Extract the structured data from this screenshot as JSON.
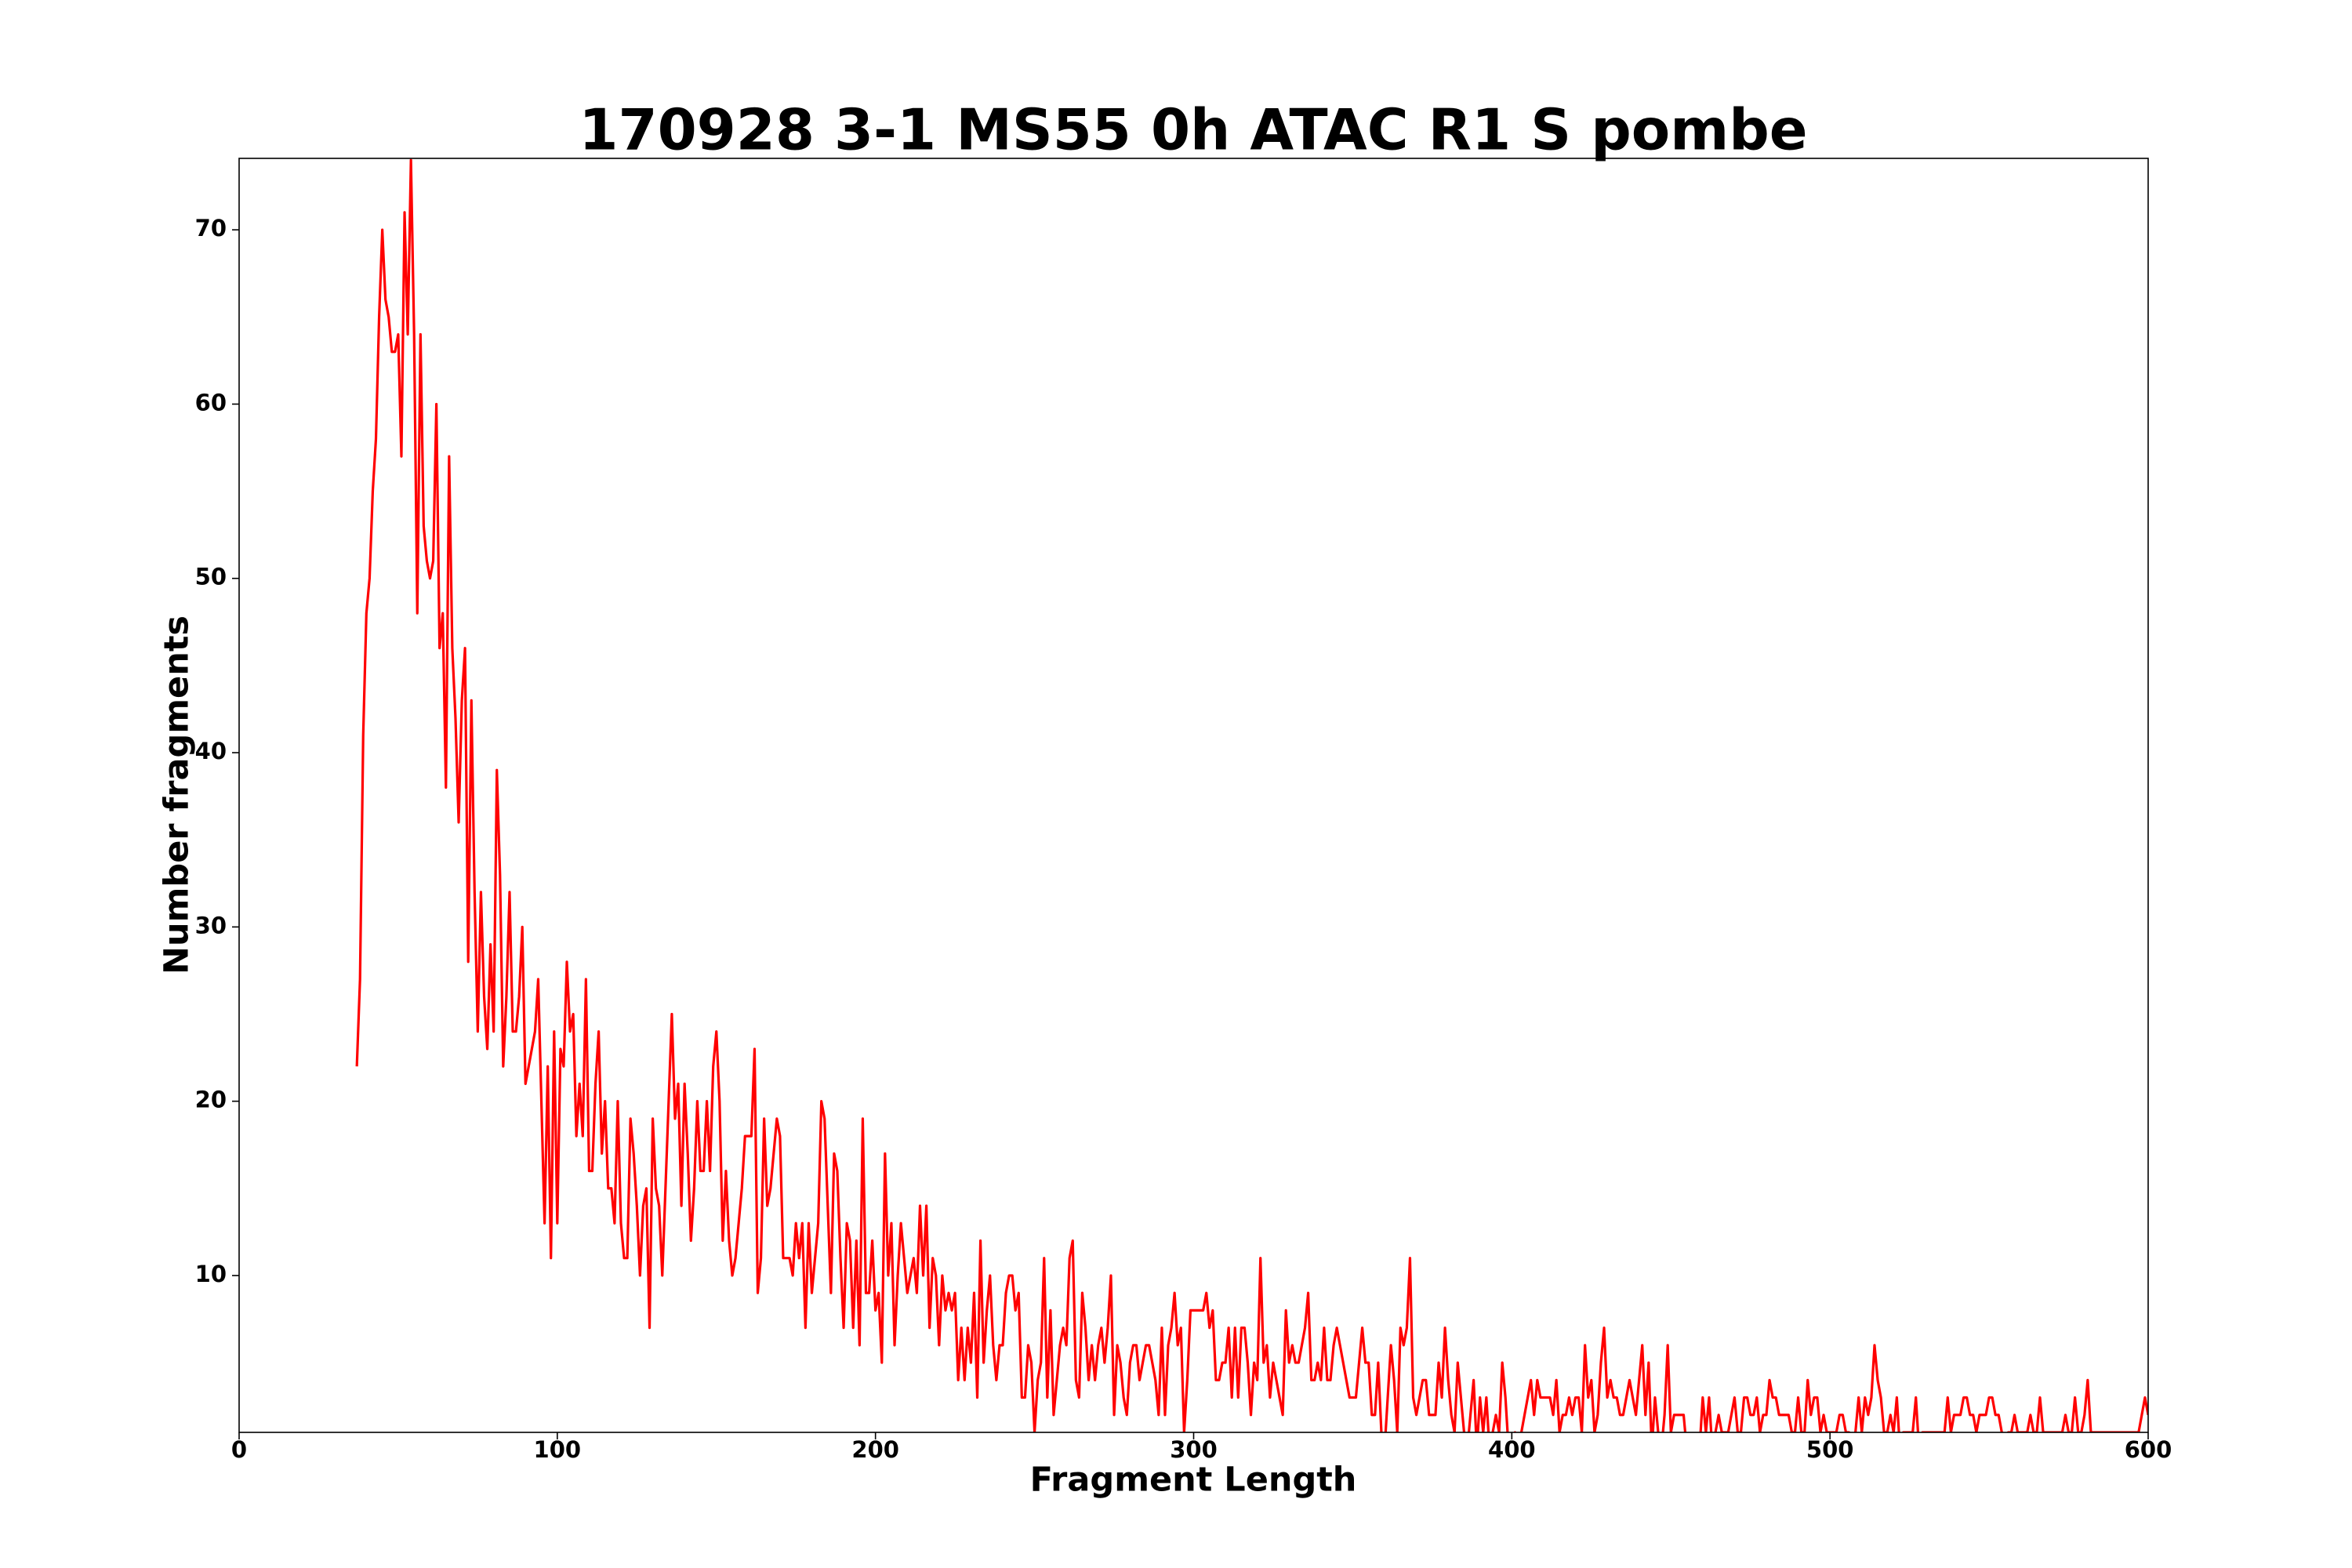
{
  "chart_data": {
    "type": "line",
    "title": "170928 3-1 MS55 0h ATAC R1 S pombe",
    "x_label": "Fragment Length",
    "y_label": "Number fragments",
    "xlim": [
      0,
      600
    ],
    "ylim": [
      1,
      74.1
    ],
    "xticks": [
      0,
      100,
      200,
      300,
      400,
      500,
      600
    ],
    "yticks": [
      10,
      20,
      30,
      40,
      50,
      60,
      70
    ],
    "grid": false,
    "series": [
      {
        "name": "fragments",
        "color": "#ff0000",
        "x": [
          37,
          38,
          39,
          40,
          41,
          42,
          43,
          44,
          45,
          46,
          47,
          48,
          49,
          50,
          51,
          52,
          53,
          54,
          55,
          56,
          57,
          58,
          59,
          60,
          61,
          62,
          63,
          64,
          65,
          66,
          67,
          68,
          69,
          70,
          71,
          72,
          73,
          74,
          75,
          76,
          77,
          78,
          79,
          80,
          81,
          82,
          83,
          84,
          85,
          86,
          87,
          88,
          89,
          90,
          91,
          92,
          93,
          94,
          95,
          96,
          97,
          98,
          99,
          100,
          101,
          102,
          103,
          104,
          105,
          106,
          107,
          108,
          109,
          110,
          111,
          112,
          113,
          114,
          115,
          116,
          117,
          118,
          119,
          120,
          121,
          122,
          123,
          124,
          125,
          126,
          127,
          128,
          129,
          130,
          131,
          132,
          133,
          134,
          135,
          136,
          137,
          138,
          139,
          140,
          141,
          142,
          143,
          144,
          145,
          146,
          147,
          148,
          149,
          150,
          151,
          152,
          153,
          154,
          155,
          156,
          157,
          158,
          159,
          160,
          161,
          162,
          163,
          164,
          165,
          166,
          167,
          168,
          169,
          170,
          171,
          172,
          173,
          174,
          175,
          176,
          177,
          178,
          179,
          180,
          181,
          182,
          183,
          184,
          185,
          186,
          187,
          188,
          189,
          190,
          191,
          192,
          193,
          194,
          195,
          196,
          197,
          198,
          199,
          200,
          201,
          202,
          203,
          204,
          205,
          206,
          207,
          208,
          209,
          210,
          211,
          212,
          213,
          214,
          215,
          216,
          217,
          218,
          219,
          220,
          221,
          222,
          223,
          224,
          225,
          226,
          227,
          228,
          229,
          230,
          231,
          232,
          233,
          234,
          235,
          236,
          237,
          238,
          239,
          240,
          241,
          242,
          243,
          244,
          245,
          246,
          247,
          248,
          249,
          250,
          251,
          252,
          253,
          254,
          255,
          256,
          257,
          258,
          259,
          260,
          261,
          262,
          263,
          264,
          265,
          266,
          267,
          268,
          269,
          270,
          271,
          272,
          273,
          274,
          275,
          276,
          277,
          278,
          279,
          280,
          281,
          282,
          283,
          284,
          285,
          286,
          287,
          288,
          289,
          290,
          291,
          292,
          293,
          294,
          295,
          296,
          297,
          298,
          299,
          300,
          301,
          302,
          303,
          304,
          305,
          306,
          307,
          308,
          309,
          310,
          311,
          312,
          313,
          314,
          315,
          316,
          317,
          318,
          319,
          320,
          321,
          322,
          323,
          324,
          325,
          326,
          327,
          328,
          329,
          330,
          331,
          332,
          333,
          334,
          335,
          336,
          337,
          338,
          339,
          340,
          341,
          342,
          343,
          344,
          345,
          346,
          347,
          348,
          349,
          350,
          351,
          352,
          353,
          354,
          355,
          356,
          357,
          358,
          359,
          360,
          361,
          362,
          363,
          364,
          365,
          366,
          367,
          368,
          369,
          370,
          371,
          372,
          373,
          374,
          375,
          376,
          377,
          378,
          379,
          380,
          381,
          382,
          383,
          384,
          385,
          386,
          387,
          388,
          389,
          390,
          391,
          392,
          393,
          394,
          395,
          396,
          397,
          398,
          399,
          400,
          401,
          402,
          403,
          404,
          405,
          406,
          407,
          408,
          409,
          410,
          411,
          412,
          413,
          414,
          415,
          416,
          417,
          418,
          419,
          420,
          421,
          422,
          423,
          424,
          425,
          426,
          427,
          428,
          429,
          430,
          431,
          432,
          433,
          434,
          435,
          436,
          437,
          438,
          439,
          440,
          441,
          442,
          443,
          444,
          445,
          446,
          447,
          448,
          449,
          450,
          451,
          452,
          453,
          454,
          455,
          456,
          457,
          458,
          459,
          460,
          461,
          462,
          463,
          464,
          465,
          466,
          467,
          468,
          469,
          470,
          471,
          472,
          473,
          474,
          475,
          476,
          477,
          478,
          479,
          480,
          481,
          482,
          483,
          484,
          485,
          486,
          487,
          488,
          489,
          490,
          491,
          492,
          493,
          494,
          495,
          496,
          497,
          498,
          499,
          500,
          501,
          502,
          503,
          504,
          505,
          506,
          507,
          508,
          509,
          510,
          511,
          512,
          513,
          514,
          515,
          516,
          517,
          518,
          519,
          520,
          521,
          522,
          523,
          524,
          525,
          526,
          527,
          528,
          529,
          530,
          531,
          532,
          533,
          534,
          535,
          536,
          537,
          538,
          539,
          540,
          541,
          542,
          543,
          544,
          545,
          546,
          547,
          548,
          549,
          550,
          551,
          552,
          553,
          554,
          555,
          556,
          557,
          558,
          559,
          560,
          561,
          562,
          563,
          564,
          565,
          566,
          567,
          568,
          569,
          570,
          571,
          572,
          573,
          574,
          575,
          576,
          577,
          578,
          579,
          580,
          581,
          582,
          583,
          584,
          585,
          586,
          587,
          588,
          589,
          590,
          591,
          592,
          593,
          594,
          595,
          596,
          597,
          598,
          599,
          600
        ],
        "values": [
          22,
          27,
          41,
          48,
          50,
          55,
          58,
          65,
          70,
          66,
          65,
          63,
          63,
          64,
          57,
          71,
          64,
          74,
          64,
          48,
          64,
          53,
          51,
          50,
          51,
          60,
          46,
          48,
          38,
          57,
          46,
          42,
          36,
          43,
          46,
          28,
          43,
          32,
          24,
          32,
          26,
          23,
          29,
          24,
          39,
          33,
          22,
          26,
          32,
          24,
          24,
          26,
          30,
          21,
          22,
          23,
          24,
          27,
          20,
          13,
          22,
          11,
          24,
          13,
          23,
          22,
          28,
          24,
          25,
          18,
          21,
          18,
          27,
          16,
          16,
          21,
          24,
          17,
          20,
          15,
          15,
          13,
          20,
          13,
          11,
          11,
          19,
          17,
          14,
          10,
          14,
          15,
          7,
          19,
          15,
          14,
          10,
          15,
          20,
          25,
          19,
          21,
          14,
          21,
          17,
          12,
          15,
          20,
          16,
          16,
          20,
          16,
          22,
          24,
          20,
          12,
          16,
          12,
          10,
          11,
          13,
          15,
          18,
          18,
          18,
          23,
          9,
          11,
          19,
          14,
          15,
          17,
          19,
          18,
          11,
          11,
          11,
          10,
          13,
          11,
          13,
          7,
          13,
          9,
          11,
          13,
          20,
          19,
          14,
          9,
          17,
          16,
          11,
          7,
          13,
          12,
          7,
          12,
          6,
          19,
          9,
          9,
          12,
          8,
          9,
          5,
          17,
          10,
          13,
          6,
          10,
          13,
          11,
          9,
          10,
          11,
          9,
          14,
          10,
          14,
          7,
          11,
          10,
          6,
          10,
          8,
          9,
          8,
          9,
          4,
          7,
          4,
          7,
          5,
          9,
          3,
          12,
          5,
          8,
          10,
          6,
          4,
          6,
          6,
          9,
          10,
          10,
          8,
          9,
          3,
          3,
          6,
          5,
          1,
          4,
          5,
          11,
          3,
          8,
          2,
          4,
          6,
          7,
          6,
          11,
          12,
          4,
          3,
          9,
          7,
          4,
          6,
          4,
          6,
          7,
          5,
          7,
          10,
          2,
          6,
          5,
          3,
          2,
          5,
          6,
          6,
          4,
          5,
          6,
          6,
          5,
          4,
          2,
          7,
          2,
          6,
          7,
          9,
          6,
          7,
          1,
          4,
          8,
          8,
          8,
          8,
          8,
          9,
          7,
          8,
          4,
          4,
          5,
          5,
          7,
          3,
          7,
          3,
          7,
          7,
          5,
          2,
          5,
          4,
          11,
          5,
          6,
          3,
          5,
          4,
          3,
          2,
          8,
          5,
          6,
          5,
          5,
          6,
          7,
          9,
          4,
          4,
          5,
          4,
          7,
          4,
          4,
          6,
          7,
          6,
          5,
          4,
          3,
          3,
          3,
          5,
          7,
          5,
          5,
          2,
          2,
          5,
          1,
          0,
          3,
          6,
          4,
          1,
          7,
          6,
          7,
          11,
          3,
          2,
          3,
          4,
          4,
          2,
          2,
          2,
          5,
          3,
          7,
          4,
          2,
          1,
          5,
          3,
          1,
          0,
          2,
          4,
          0,
          3,
          1,
          3,
          0,
          1,
          2,
          1,
          5,
          3,
          0,
          0,
          1,
          0,
          1,
          2,
          3,
          4,
          2,
          4,
          3,
          3,
          3,
          3,
          2,
          4,
          1,
          2,
          2,
          3,
          2,
          3,
          3,
          1,
          6,
          3,
          4,
          1,
          2,
          5,
          7,
          3,
          4,
          3,
          3,
          2,
          2,
          3,
          4,
          3,
          2,
          4,
          6,
          2,
          5,
          0,
          3,
          1,
          0,
          2,
          6,
          1,
          2,
          2,
          2,
          2,
          0,
          0,
          0,
          0,
          0,
          3,
          1,
          3,
          0,
          1,
          2,
          1,
          1,
          1,
          2,
          3,
          1,
          1,
          3,
          3,
          2,
          2,
          3,
          1,
          2,
          2,
          4,
          3,
          3,
          2,
          2,
          2,
          2,
          1,
          1,
          3,
          1,
          1,
          4,
          2,
          3,
          3,
          1,
          2,
          1,
          1,
          1,
          1,
          2,
          2,
          1,
          1,
          0,
          1,
          3,
          1,
          3,
          2,
          3,
          6,
          4,
          3,
          1,
          1,
          2,
          1,
          3,
          0,
          1,
          1,
          1,
          1,
          3,
          0,
          1,
          1,
          1,
          1,
          1,
          1,
          1,
          1,
          3,
          1,
          2,
          2,
          2,
          3,
          3,
          2,
          2,
          1,
          2,
          2,
          2,
          3,
          3,
          2,
          2,
          1,
          0,
          1,
          1,
          2,
          1,
          1,
          1,
          1,
          2,
          1,
          1,
          3,
          1,
          1,
          1,
          1,
          1,
          1,
          1,
          2,
          1,
          1,
          3,
          1,
          1,
          2,
          4,
          1,
          1,
          1,
          1,
          1,
          1,
          1,
          1,
          1,
          1,
          1,
          1,
          1,
          1,
          1,
          1,
          2,
          3,
          2
        ]
      }
    ]
  }
}
